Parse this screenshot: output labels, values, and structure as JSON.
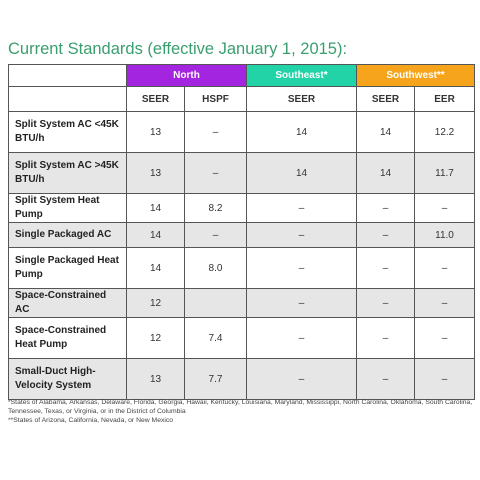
{
  "title": "Current Standards (effective January 1, 2015):",
  "groups": {
    "north": "North",
    "southeast": "Southeast*",
    "southwest": "Southwest**"
  },
  "colors": {
    "north": "#a425e0",
    "southeast": "#23d3a8",
    "southwest": "#f6a41c",
    "title": "#3a9e6f"
  },
  "subheaders": {
    "north_seer": "SEER",
    "north_hspf": "HSPF",
    "southeast_seer": "SEER",
    "southwest_seer": "SEER",
    "southwest_eer": "EER"
  },
  "rows": [
    {
      "label": "Split System AC <45K BTU/h",
      "north_seer": "13",
      "north_hspf": "–",
      "southeast_seer": "14",
      "southwest_seer": "14",
      "southwest_eer": "12.2"
    },
    {
      "label": "Split System AC >45K BTU/h",
      "north_seer": "13",
      "north_hspf": "–",
      "southeast_seer": "14",
      "southwest_seer": "14",
      "southwest_eer": "11.7"
    },
    {
      "label": "Split System Heat Pump",
      "north_seer": "14",
      "north_hspf": "8.2",
      "southeast_seer": "–",
      "southwest_seer": "–",
      "southwest_eer": "–"
    },
    {
      "label": "Single Packaged AC",
      "north_seer": "14",
      "north_hspf": "–",
      "southeast_seer": "–",
      "southwest_seer": "–",
      "southwest_eer": "11.0"
    },
    {
      "label": "Single Packaged Heat Pump",
      "north_seer": "14",
      "north_hspf": "8.0",
      "southeast_seer": "–",
      "southwest_seer": "–",
      "southwest_eer": "–"
    },
    {
      "label": "Space-Constrained AC",
      "north_seer": "12",
      "north_hspf": "",
      "southeast_seer": "–",
      "southwest_seer": "–",
      "southwest_eer": "–"
    },
    {
      "label": "Space-Constrained Heat Pump",
      "north_seer": "12",
      "north_hspf": "7.4",
      "southeast_seer": "–",
      "southwest_seer": "–",
      "southwest_eer": "–"
    },
    {
      "label": "Small-Duct High-Velocity System",
      "north_seer": "13",
      "north_hspf": "7.7",
      "southeast_seer": "–",
      "southwest_seer": "–",
      "southwest_eer": "–"
    }
  ],
  "footnotes": {
    "southeast": "*States of Alabama, Arkansas, Delaware, Florida, Georgia, Hawaii, Kentucky, Louisiana, Maryland, Mississippi, North Carolina, Oklahoma, South Carolina, Tennessee, Texas, or Virginia, or in the District of Columbia",
    "southwest": "**States of Arizona, California, Nevada, or New Mexico"
  }
}
